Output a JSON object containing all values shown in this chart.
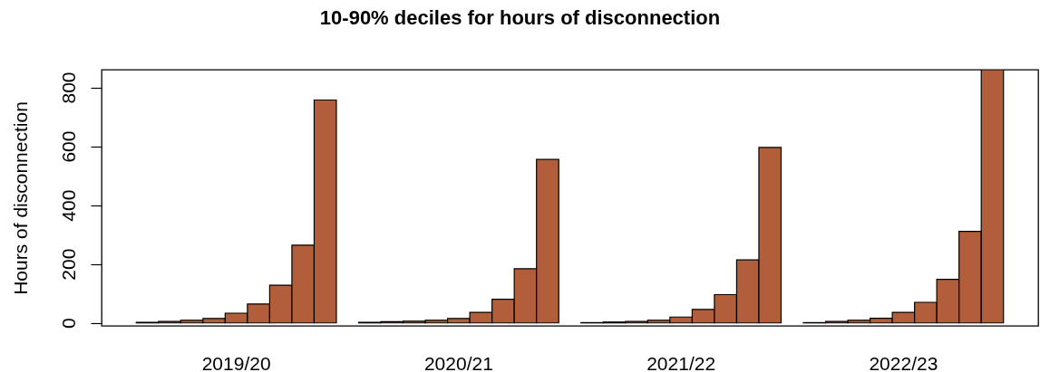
{
  "chart_data": {
    "type": "bar",
    "title": "10-90% deciles for hours of disconnection",
    "ylabel": "Hours of disconnection",
    "categories": [
      "2019/20",
      "2020/21",
      "2021/22",
      "2022/23"
    ],
    "series": [
      {
        "color": "#b35e3a",
        "values": [
          2,
          2,
          1,
          1
        ]
      },
      {
        "color": "#b35e3a",
        "values": [
          5,
          4,
          3,
          5
        ]
      },
      {
        "color": "#b35e3a",
        "values": [
          9,
          6,
          5,
          9
        ]
      },
      {
        "color": "#b35e3a",
        "values": [
          15,
          9,
          9,
          16
        ]
      },
      {
        "color": "#b35e3a",
        "values": [
          33,
          15,
          20,
          36
        ]
      },
      {
        "color": "#b35e3a",
        "values": [
          64,
          36,
          46,
          70
        ]
      },
      {
        "color": "#b35e3a",
        "values": [
          128,
          80,
          96,
          148
        ]
      },
      {
        "color": "#b35e3a",
        "values": [
          264,
          184,
          214,
          311
        ]
      },
      {
        "color": "#b35e3a",
        "values": [
          757,
          555,
          596,
          860
        ]
      }
    ],
    "ylim": [
      -10,
      860
    ],
    "yticks": [
      0,
      200,
      400,
      600,
      800
    ]
  }
}
